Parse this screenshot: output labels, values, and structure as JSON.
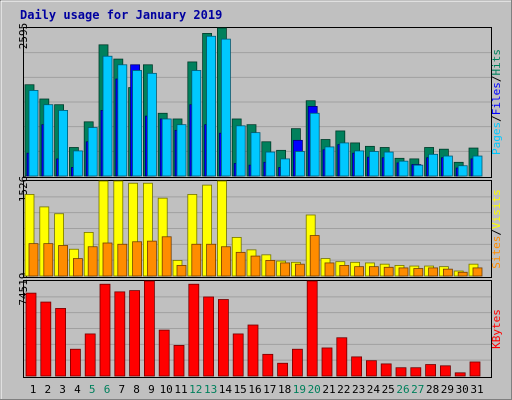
{
  "title": "Daily usage for January 2019",
  "colors": {
    "background": "#c0c0c0",
    "title": "#0000a0",
    "hits": "#00805c",
    "files": "#0000ff",
    "pages": "#00c8ff",
    "visits": "#ffff00",
    "sites": "#ff8c00",
    "kbytes": "#ff0000",
    "weekend_label": "#00805c",
    "weekday_label": "#000000",
    "gridline": "#a0a0a0"
  },
  "legend": {
    "top": [
      {
        "text": "Pages",
        "color_key": "pages"
      },
      {
        "text": "Files",
        "color_key": "files"
      },
      {
        "text": "Hits",
        "color_key": "hits"
      }
    ],
    "middle": [
      {
        "text": "Sites",
        "color_key": "sites"
      },
      {
        "text": "Visits",
        "color_key": "visits"
      }
    ],
    "bottom": [
      {
        "text": "KBytes",
        "color_key": "kbytes"
      }
    ]
  },
  "chart_data": [
    {
      "type": "bar",
      "name": "hits-files-pages",
      "title": "Daily usage for January 2019",
      "max_label": "2595",
      "ylim": [
        0,
        2595
      ],
      "categories": [
        "1",
        "2",
        "3",
        "4",
        "5",
        "6",
        "7",
        "8",
        "9",
        "10",
        "11",
        "12",
        "13",
        "14",
        "15",
        "16",
        "17",
        "18",
        "19",
        "20",
        "21",
        "22",
        "23",
        "24",
        "25",
        "26",
        "27",
        "28",
        "29",
        "30",
        "31"
      ],
      "weekend_days": [
        "5",
        "6",
        "12",
        "13",
        "19",
        "20",
        "26",
        "27"
      ],
      "series": [
        {
          "name": "Hits",
          "color_key": "hits",
          "values": [
            1600,
            1350,
            1250,
            500,
            950,
            2300,
            2050,
            1550,
            1950,
            1100,
            1000,
            2000,
            2500,
            2650,
            1000,
            900,
            600,
            450,
            830,
            1320,
            640,
            790,
            580,
            520,
            500,
            310,
            300,
            500,
            470,
            240,
            490
          ]
        },
        {
          "name": "Files",
          "color_key": "files",
          "values": [
            400,
            900,
            300,
            150,
            600,
            1150,
            1700,
            1950,
            1050,
            1000,
            800,
            1250,
            900,
            750,
            220,
            190,
            240,
            150,
            625,
            1220,
            460,
            550,
            400,
            330,
            320,
            230,
            200,
            320,
            320,
            140,
            300
          ]
        },
        {
          "name": "Pages",
          "color_key": "pages",
          "values": [
            1500,
            1250,
            1150,
            440,
            850,
            2100,
            1950,
            1850,
            1800,
            1000,
            900,
            1850,
            2450,
            2400,
            880,
            760,
            420,
            300,
            430,
            1100,
            510,
            580,
            440,
            430,
            420,
            260,
            190,
            380,
            350,
            180,
            350
          ]
        }
      ]
    },
    {
      "type": "bar",
      "name": "visits-sites",
      "max_label": "1526",
      "ylim": [
        0,
        1526
      ],
      "categories": [
        "1",
        "2",
        "3",
        "4",
        "5",
        "6",
        "7",
        "8",
        "9",
        "10",
        "11",
        "12",
        "13",
        "14",
        "15",
        "16",
        "17",
        "18",
        "19",
        "20",
        "21",
        "22",
        "23",
        "24",
        "25",
        "26",
        "27",
        "28",
        "29",
        "30",
        "31"
      ],
      "series": [
        {
          "name": "Visits",
          "color_key": "visits",
          "values": [
            1310,
            1110,
            1000,
            430,
            700,
            1560,
            1560,
            1490,
            1490,
            1250,
            250,
            1310,
            1460,
            1530,
            620,
            420,
            340,
            240,
            220,
            980,
            280,
            230,
            220,
            210,
            190,
            170,
            160,
            160,
            150,
            80,
            190
          ]
        },
        {
          "name": "Sites",
          "color_key": "sites",
          "values": [
            520,
            520,
            490,
            280,
            470,
            530,
            510,
            550,
            560,
            630,
            170,
            510,
            510,
            470,
            380,
            320,
            250,
            210,
            190,
            650,
            210,
            170,
            150,
            150,
            140,
            130,
            120,
            130,
            110,
            60,
            130
          ]
        }
      ]
    },
    {
      "type": "bar",
      "name": "kbytes",
      "max_label": "74519",
      "ylim": [
        0,
        74519
      ],
      "categories": [
        "1",
        "2",
        "3",
        "4",
        "5",
        "6",
        "7",
        "8",
        "9",
        "10",
        "11",
        "12",
        "13",
        "14",
        "15",
        "16",
        "17",
        "18",
        "19",
        "20",
        "21",
        "22",
        "23",
        "24",
        "25",
        "26",
        "27",
        "28",
        "29",
        "30",
        "31"
      ],
      "series": [
        {
          "name": "KBytes",
          "color_key": "kbytes",
          "values": [
            65000,
            58000,
            53000,
            21000,
            33000,
            72000,
            66000,
            67000,
            77000,
            36000,
            24000,
            72000,
            62000,
            60000,
            33000,
            40000,
            17000,
            10000,
            21000,
            76500,
            22000,
            30000,
            15000,
            12000,
            9500,
            6500,
            6500,
            9000,
            8000,
            2500,
            11000
          ]
        }
      ]
    }
  ]
}
